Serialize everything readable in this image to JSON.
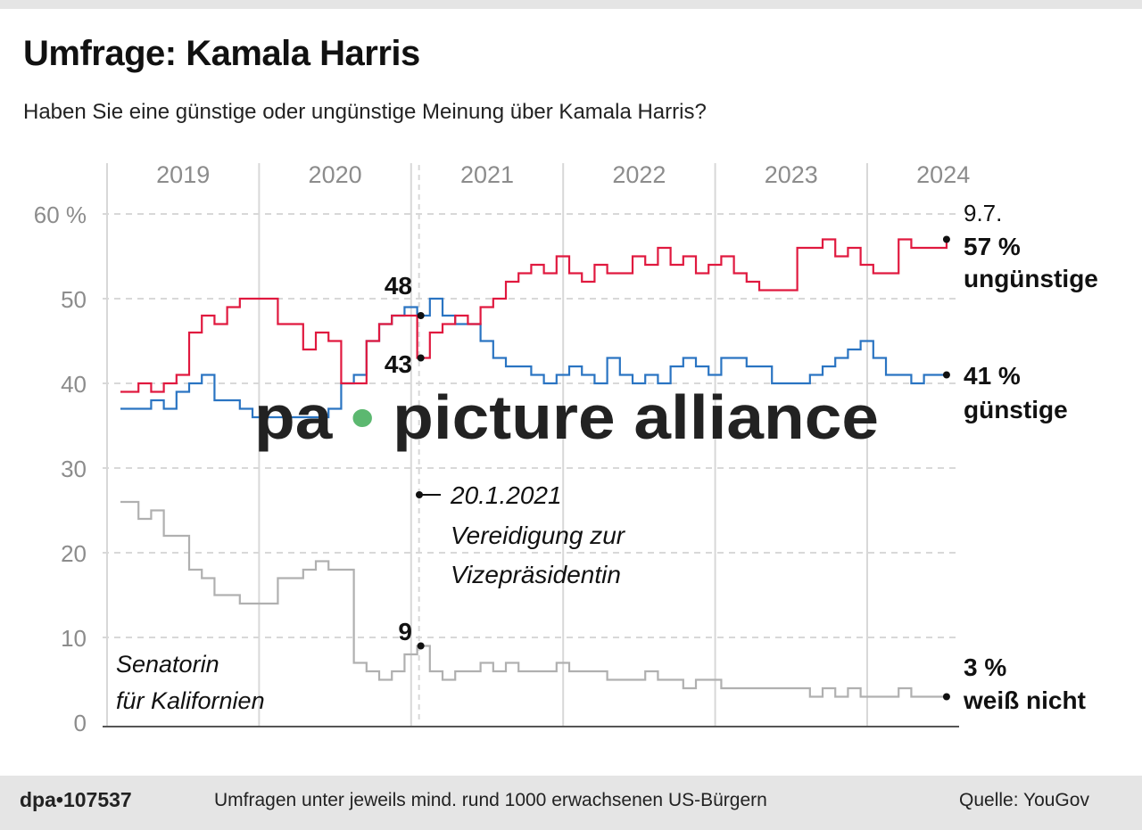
{
  "title": "Umfrage: Kamala Harris",
  "subtitle": "Haben Sie eine günstige oder ungünstige Meinung über Kamala Harris?",
  "watermark": "pa • picture alliance",
  "footer": {
    "id": "dpa•107537",
    "note": "Umfragen unter jeweils mind. rund 1000 erwachsenen US-Bürgern",
    "source": "Quelle: YouGov"
  },
  "colors": {
    "unguenstig": "#e0193f",
    "guenstig": "#2a74c2",
    "weiss_nicht": "#b0b0b0",
    "grid": "#d8d8d8",
    "axis_text": "#8c8c8c"
  },
  "chart_data": {
    "type": "line",
    "step": true,
    "title": "Umfrage: Kamala Harris",
    "subtitle": "Haben Sie eine günstige oder ungünstige Meinung über Kamala Harris?",
    "x_tick_labels": [
      "2019",
      "2020",
      "2021",
      "2022",
      "2023",
      "2024"
    ],
    "y_tick_labels": [
      "60 %",
      "50",
      "40",
      "30",
      "20",
      "10",
      "0"
    ],
    "y_ticks": [
      60,
      50,
      40,
      30,
      20,
      10,
      0
    ],
    "ylim": [
      0,
      60
    ],
    "grid": "horizontal dashed, vertical year lines",
    "x": [
      "2019-02",
      "2019-03",
      "2019-04",
      "2019-05",
      "2019-06",
      "2019-07",
      "2019-08",
      "2019-09",
      "2019-10",
      "2019-11",
      "2019-12",
      "2020-01",
      "2020-02",
      "2020-03",
      "2020-04",
      "2020-05",
      "2020-06",
      "2020-07",
      "2020-08",
      "2020-09",
      "2020-10",
      "2020-11",
      "2020-12",
      "2021-01",
      "2021-02",
      "2021-03",
      "2021-04",
      "2021-05",
      "2021-06",
      "2021-07",
      "2021-08",
      "2021-09",
      "2021-10",
      "2021-11",
      "2021-12",
      "2022-01",
      "2022-02",
      "2022-03",
      "2022-04",
      "2022-05",
      "2022-06",
      "2022-07",
      "2022-08",
      "2022-09",
      "2022-10",
      "2022-11",
      "2022-12",
      "2023-01",
      "2023-02",
      "2023-03",
      "2023-04",
      "2023-05",
      "2023-06",
      "2023-07",
      "2023-08",
      "2023-09",
      "2023-10",
      "2023-11",
      "2023-12",
      "2024-01",
      "2024-02",
      "2024-03",
      "2024-04",
      "2024-05",
      "2024-06",
      "2024-07-09"
    ],
    "series": [
      {
        "name": "ungünstige",
        "end_label": "57 %",
        "values": [
          39,
          40,
          39,
          40,
          41,
          46,
          48,
          47,
          49,
          50,
          50,
          50,
          47,
          47,
          44,
          46,
          45,
          40,
          40,
          45,
          47,
          48,
          48,
          43,
          46,
          47,
          48,
          47,
          49,
          50,
          52,
          53,
          54,
          53,
          55,
          53,
          52,
          54,
          53,
          53,
          55,
          54,
          56,
          54,
          55,
          53,
          54,
          55,
          53,
          52,
          51,
          51,
          51,
          56,
          56,
          57,
          55,
          56,
          54,
          53,
          53,
          57,
          56,
          56,
          56,
          57
        ]
      },
      {
        "name": "günstige",
        "end_label": "41 %",
        "values": [
          37,
          37,
          38,
          37,
          39,
          40,
          41,
          38,
          38,
          37,
          36,
          36,
          36,
          36,
          36,
          36,
          37,
          40,
          41,
          45,
          47,
          48,
          49,
          48,
          50,
          48,
          47,
          47,
          45,
          43,
          42,
          42,
          41,
          40,
          41,
          42,
          41,
          40,
          43,
          41,
          40,
          41,
          40,
          42,
          43,
          42,
          41,
          43,
          43,
          42,
          42,
          40,
          40,
          40,
          41,
          42,
          43,
          44,
          45,
          43,
          41,
          41,
          40,
          41,
          41,
          41
        ]
      },
      {
        "name": "weiß nicht",
        "end_label": "3 %",
        "values": [
          26,
          24,
          25,
          22,
          22,
          18,
          17,
          15,
          15,
          14,
          14,
          14,
          17,
          17,
          18,
          19,
          18,
          18,
          7,
          6,
          5,
          6,
          8,
          9,
          6,
          5,
          6,
          6,
          7,
          6,
          7,
          6,
          6,
          6,
          7,
          6,
          6,
          6,
          5,
          5,
          5,
          6,
          5,
          5,
          4,
          5,
          5,
          4,
          4,
          4,
          4,
          4,
          4,
          4,
          3,
          4,
          3,
          4,
          3,
          3,
          3,
          4,
          3,
          3,
          3,
          3
        ]
      }
    ],
    "end_date_label": "9.7.",
    "annotations": {
      "event_date": "20.1.2021",
      "event_line1": "Vereidigung zur",
      "event_line2": "Vizepräsidentin",
      "event_values": [
        "48",
        "43",
        "9"
      ],
      "period_line1": "Senatorin",
      "period_line2": "für Kalifornien"
    }
  }
}
